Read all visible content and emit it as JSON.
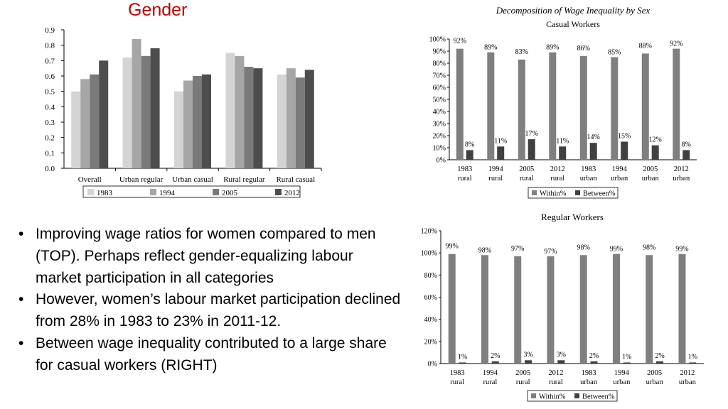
{
  "slide": {
    "title": "Gender",
    "bullets": [
      "Improving wage ratios for women compared to men (TOP). Perhaps reflect gender-equalizing labour market participation in all categories",
      "However, women’s labour market participation declined from 28% in 1983 to 23% in 2011-12.",
      "Between wage inequality contributed to a large share for casual workers (RIGHT)"
    ]
  },
  "chart_data": [
    {
      "type": "bar",
      "title": "",
      "categories": [
        "Overall",
        "Urban regular",
        "Urban casual",
        "Rural regular",
        "Rural casual"
      ],
      "series": [
        {
          "name": "1983",
          "color": "#d4d4d4",
          "values": [
            0.5,
            0.72,
            0.5,
            0.75,
            0.61
          ]
        },
        {
          "name": "1994",
          "color": "#a6a6a6",
          "values": [
            0.58,
            0.84,
            0.57,
            0.73,
            0.65
          ]
        },
        {
          "name": "2005",
          "color": "#7a7a7a",
          "values": [
            0.61,
            0.73,
            0.6,
            0.66,
            0.59
          ]
        },
        {
          "name": "2012",
          "color": "#4d4d4d",
          "values": [
            0.7,
            0.78,
            0.61,
            0.65,
            0.64
          ]
        }
      ],
      "yticks": [
        "0.0",
        "0.1",
        "0.2",
        "0.3",
        "0.4",
        "0.5",
        "0.6",
        "0.7",
        "0.8",
        "0.9"
      ],
      "ylim": [
        0,
        0.9
      ],
      "xlabel": "",
      "ylabel": ""
    },
    {
      "type": "bar",
      "title": "Decomposition of Wage Inequality by Sex",
      "subtitle": "Casual Workers",
      "categories": [
        [
          "1983",
          "rural"
        ],
        [
          "1994",
          "rural"
        ],
        [
          "2005",
          "rural"
        ],
        [
          "2012",
          "rural"
        ],
        [
          "1983",
          "urban"
        ],
        [
          "1994",
          "urban"
        ],
        [
          "2005",
          "urban"
        ],
        [
          "2012",
          "urban"
        ]
      ],
      "series": [
        {
          "name": "Within%",
          "color": "#7f7f7f",
          "values": [
            92,
            89,
            83,
            89,
            86,
            85,
            88,
            92
          ],
          "labels": [
            "92%",
            "89%",
            "83%",
            "89%",
            "86%",
            "85%",
            "88%",
            "92%"
          ]
        },
        {
          "name": "Between%",
          "color": "#404040",
          "values": [
            8,
            11,
            17,
            11,
            14,
            15,
            12,
            8
          ],
          "labels": [
            "8%",
            "11%",
            "17%",
            "11%",
            "14%",
            "15%",
            "12%",
            "8%"
          ]
        }
      ],
      "yticks": [
        "0%",
        "10%",
        "20%",
        "30%",
        "40%",
        "50%",
        "60%",
        "70%",
        "80%",
        "90%",
        "100%"
      ],
      "ylim": [
        0,
        100
      ]
    },
    {
      "type": "bar",
      "title": "Regular Workers",
      "categories": [
        [
          "1983",
          "rural"
        ],
        [
          "1994",
          "rural"
        ],
        [
          "2005",
          "rural"
        ],
        [
          "2012",
          "rural"
        ],
        [
          "1983",
          "urban"
        ],
        [
          "1994",
          "urban"
        ],
        [
          "2005",
          "urban"
        ],
        [
          "2012",
          "urban"
        ]
      ],
      "series": [
        {
          "name": "Within%",
          "color": "#7f7f7f",
          "values": [
            99,
            98,
            97,
            97,
            98,
            99,
            98,
            99
          ],
          "labels": [
            "99%",
            "98%",
            "97%",
            "97%",
            "98%",
            "99%",
            "98%",
            "99%"
          ]
        },
        {
          "name": "Between%",
          "color": "#404040",
          "values": [
            1,
            2,
            3,
            3,
            2,
            1,
            2,
            1
          ],
          "labels": [
            "1%",
            "2%",
            "3%",
            "3%",
            "2%",
            "1%",
            "2%",
            "1%"
          ]
        }
      ],
      "yticks": [
        "0%",
        "20%",
        "40%",
        "60%",
        "80%",
        "100%",
        "120%"
      ],
      "ylim": [
        0,
        120
      ]
    }
  ]
}
